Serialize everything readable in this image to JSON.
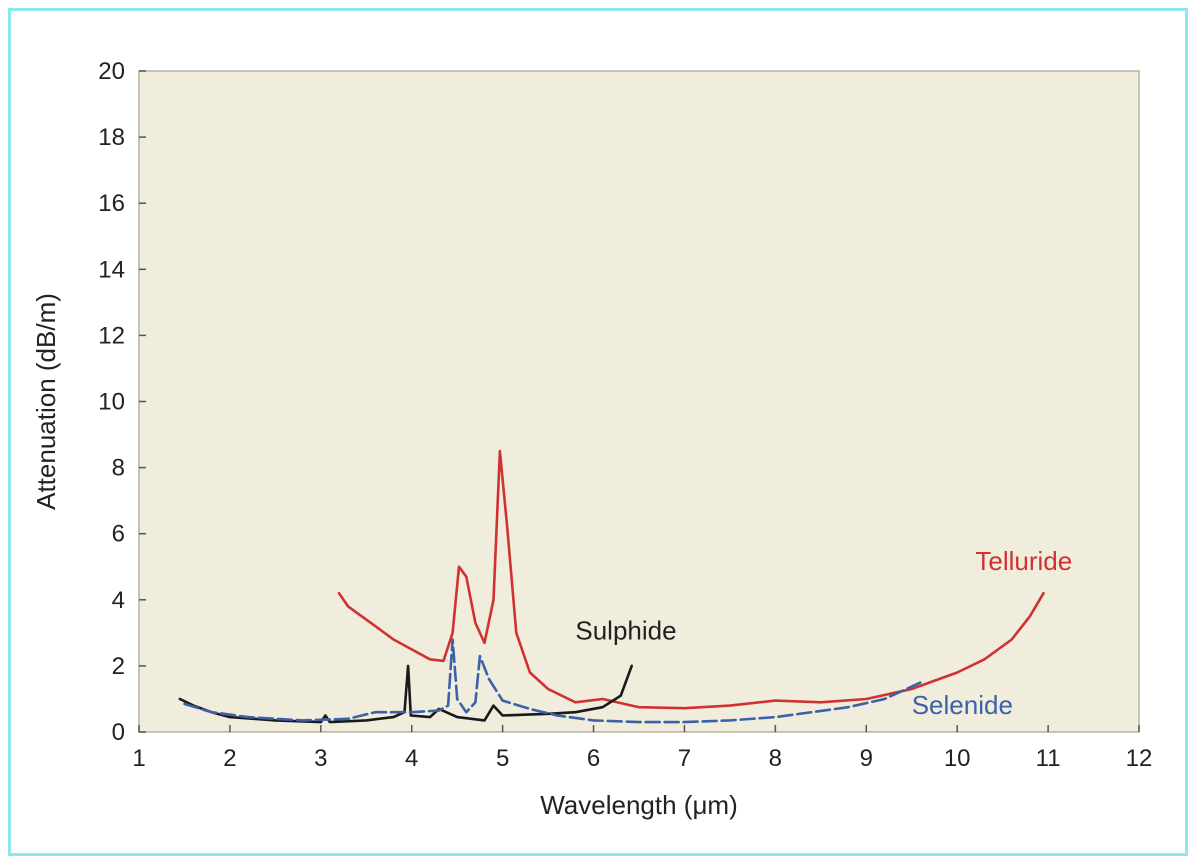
{
  "chart_data": {
    "type": "line",
    "xlabel": "Wavelength (μm)",
    "ylabel": "Attenuation (dB/m)",
    "xlim": [
      1,
      12
    ],
    "ylim": [
      0,
      20
    ],
    "xticks": [
      1,
      2,
      3,
      4,
      5,
      6,
      7,
      8,
      9,
      10,
      11,
      12
    ],
    "yticks": [
      0,
      2,
      4,
      6,
      8,
      10,
      12,
      14,
      16,
      18,
      20
    ],
    "grid": false,
    "legend": "inline labels",
    "plot_background": "#f1eddc",
    "series": [
      {
        "name": "Telluride",
        "color": "#d03232",
        "dashed": false,
        "label_at": [
          10.2,
          4.9
        ],
        "points": [
          [
            3.2,
            4.2
          ],
          [
            3.3,
            3.8
          ],
          [
            3.45,
            3.5
          ],
          [
            3.6,
            3.2
          ],
          [
            3.8,
            2.8
          ],
          [
            4.0,
            2.5
          ],
          [
            4.2,
            2.2
          ],
          [
            4.35,
            2.15
          ],
          [
            4.45,
            3.0
          ],
          [
            4.52,
            5.0
          ],
          [
            4.6,
            4.7
          ],
          [
            4.7,
            3.3
          ],
          [
            4.8,
            2.7
          ],
          [
            4.9,
            4.0
          ],
          [
            4.97,
            8.5
          ],
          [
            5.05,
            6.2
          ],
          [
            5.15,
            3.0
          ],
          [
            5.3,
            1.8
          ],
          [
            5.5,
            1.3
          ],
          [
            5.8,
            0.9
          ],
          [
            6.1,
            1.0
          ],
          [
            6.5,
            0.75
          ],
          [
            7.0,
            0.72
          ],
          [
            7.5,
            0.8
          ],
          [
            8.0,
            0.95
          ],
          [
            8.5,
            0.9
          ],
          [
            9.0,
            1.0
          ],
          [
            9.5,
            1.3
          ],
          [
            10.0,
            1.8
          ],
          [
            10.3,
            2.2
          ],
          [
            10.6,
            2.8
          ],
          [
            10.8,
            3.5
          ],
          [
            10.95,
            4.2
          ]
        ]
      },
      {
        "name": "Sulphide",
        "color": "#1a1a1a",
        "dashed": false,
        "label_at": [
          5.8,
          2.8
        ],
        "points": [
          [
            1.45,
            1.0
          ],
          [
            1.6,
            0.8
          ],
          [
            1.8,
            0.6
          ],
          [
            2.0,
            0.45
          ],
          [
            2.5,
            0.35
          ],
          [
            3.0,
            0.3
          ],
          [
            3.05,
            0.5
          ],
          [
            3.1,
            0.3
          ],
          [
            3.5,
            0.35
          ],
          [
            3.8,
            0.45
          ],
          [
            3.92,
            0.6
          ],
          [
            3.96,
            2.0
          ],
          [
            3.99,
            0.5
          ],
          [
            4.2,
            0.45
          ],
          [
            4.3,
            0.7
          ],
          [
            4.5,
            0.45
          ],
          [
            4.8,
            0.35
          ],
          [
            4.9,
            0.8
          ],
          [
            5.0,
            0.5
          ],
          [
            5.5,
            0.55
          ],
          [
            5.8,
            0.6
          ],
          [
            6.1,
            0.75
          ],
          [
            6.3,
            1.1
          ],
          [
            6.42,
            2.0
          ]
        ]
      },
      {
        "name": "Selenide",
        "color": "#3b62a8",
        "dashed": true,
        "label_at": [
          9.5,
          0.55
        ],
        "points": [
          [
            1.5,
            0.85
          ],
          [
            1.8,
            0.6
          ],
          [
            2.2,
            0.45
          ],
          [
            2.8,
            0.35
          ],
          [
            3.3,
            0.4
          ],
          [
            3.6,
            0.6
          ],
          [
            4.0,
            0.6
          ],
          [
            4.3,
            0.65
          ],
          [
            4.4,
            0.8
          ],
          [
            4.45,
            2.8
          ],
          [
            4.5,
            1.0
          ],
          [
            4.6,
            0.6
          ],
          [
            4.7,
            0.9
          ],
          [
            4.75,
            2.3
          ],
          [
            4.85,
            1.6
          ],
          [
            5.0,
            0.95
          ],
          [
            5.3,
            0.7
          ],
          [
            5.6,
            0.5
          ],
          [
            6.0,
            0.35
          ],
          [
            6.5,
            0.3
          ],
          [
            7.0,
            0.3
          ],
          [
            7.5,
            0.35
          ],
          [
            8.0,
            0.45
          ],
          [
            8.4,
            0.6
          ],
          [
            8.8,
            0.75
          ],
          [
            9.2,
            1.0
          ],
          [
            9.6,
            1.5
          ]
        ]
      }
    ]
  }
}
